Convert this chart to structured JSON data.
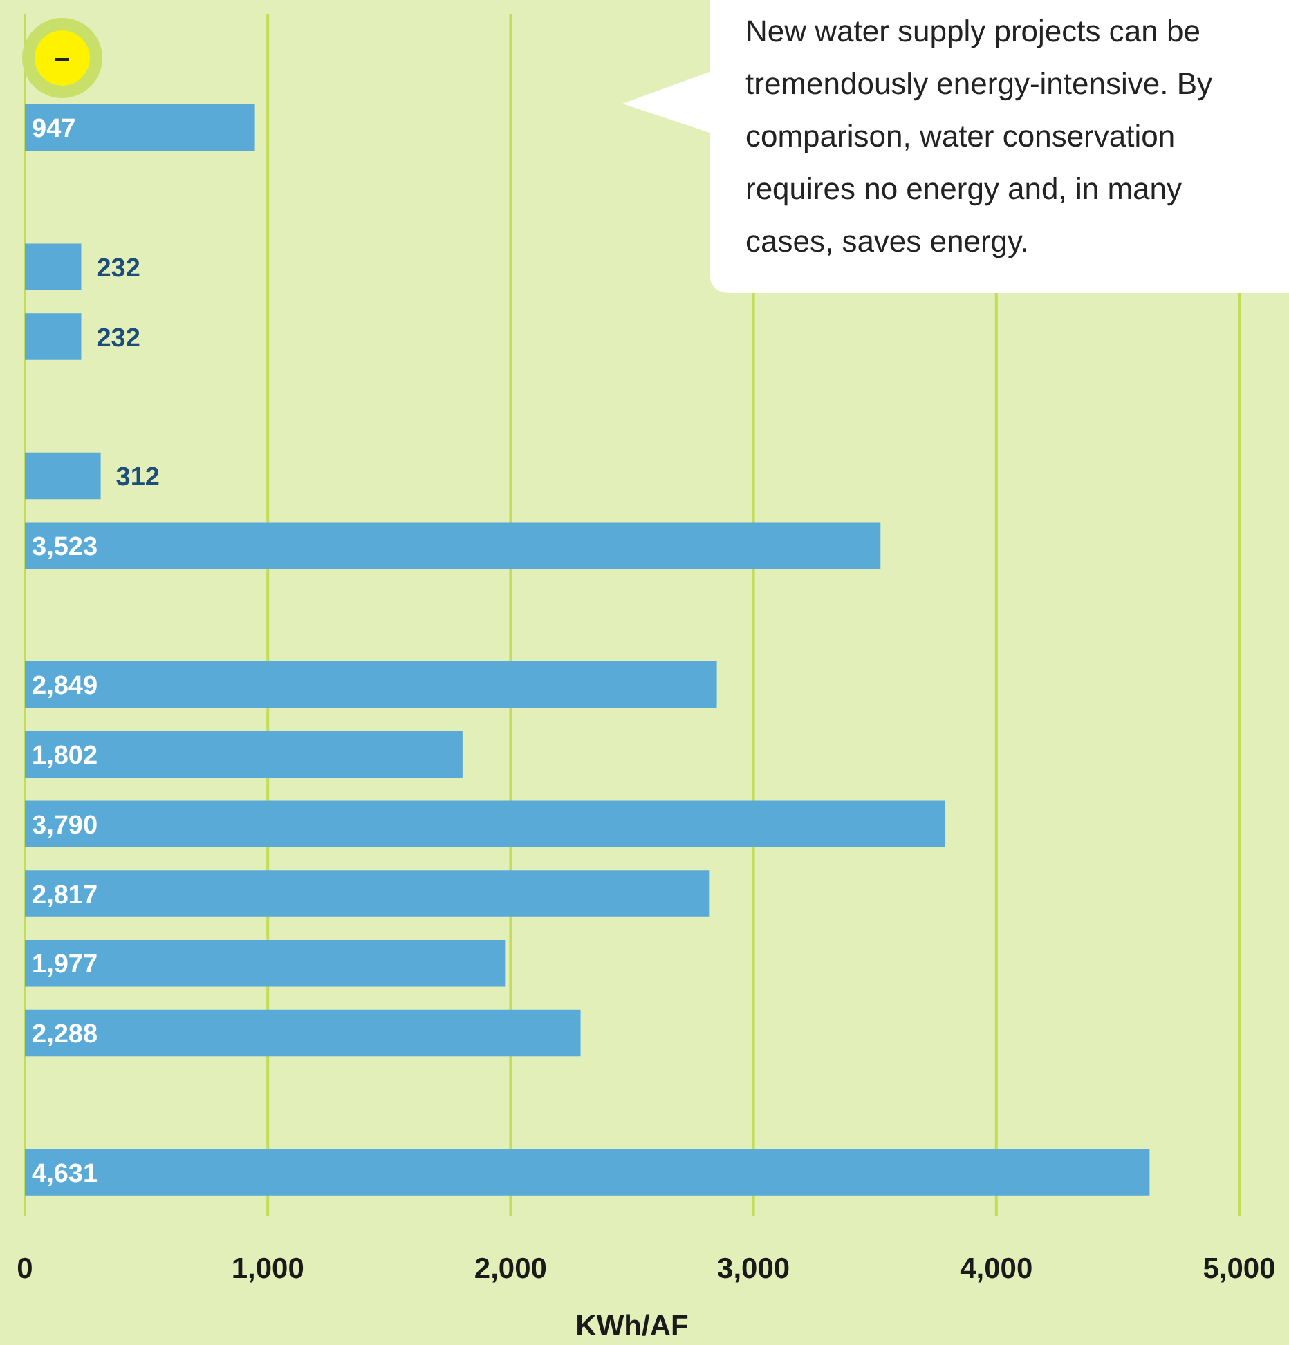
{
  "chart_data": {
    "type": "bar",
    "orientation": "horizontal",
    "xlabel": "KWh/AF",
    "categories": [
      null,
      null,
      null,
      null,
      null,
      null,
      null,
      null,
      null,
      null,
      null,
      null,
      null,
      null,
      null,
      null,
      null
    ],
    "values": [
      null,
      947,
      null,
      232,
      232,
      null,
      312,
      3523,
      null,
      2849,
      1802,
      3790,
      2817,
      1977,
      2288,
      null,
      4631
    ],
    "color": "#5aaad8",
    "value_labels": [
      null,
      "947",
      null,
      "232",
      "232",
      null,
      "312",
      "3,523",
      null,
      "2,849",
      "1,802",
      "3,790",
      "2,817",
      "1,977",
      "2,288",
      null,
      "4,631"
    ],
    "xlim": [
      0,
      5000
    ],
    "xticks": [
      0,
      {
        "value": 1000,
        "label": "1,000"
      },
      {
        "value": 2000,
        "label": "2,000"
      },
      {
        "value": 3000,
        "label": "3,000"
      },
      {
        "value": 4000,
        "label": "4,000"
      },
      {
        "value": 5000,
        "label": "5,000"
      }
    ],
    "grid": "x",
    "tick_labels": "x",
    "annotations": [
      "New water supply projects can be tremendously energy-intensive. By comparison, water conservation requires no energy and, in many cases, saves energy."
    ]
  }
}
